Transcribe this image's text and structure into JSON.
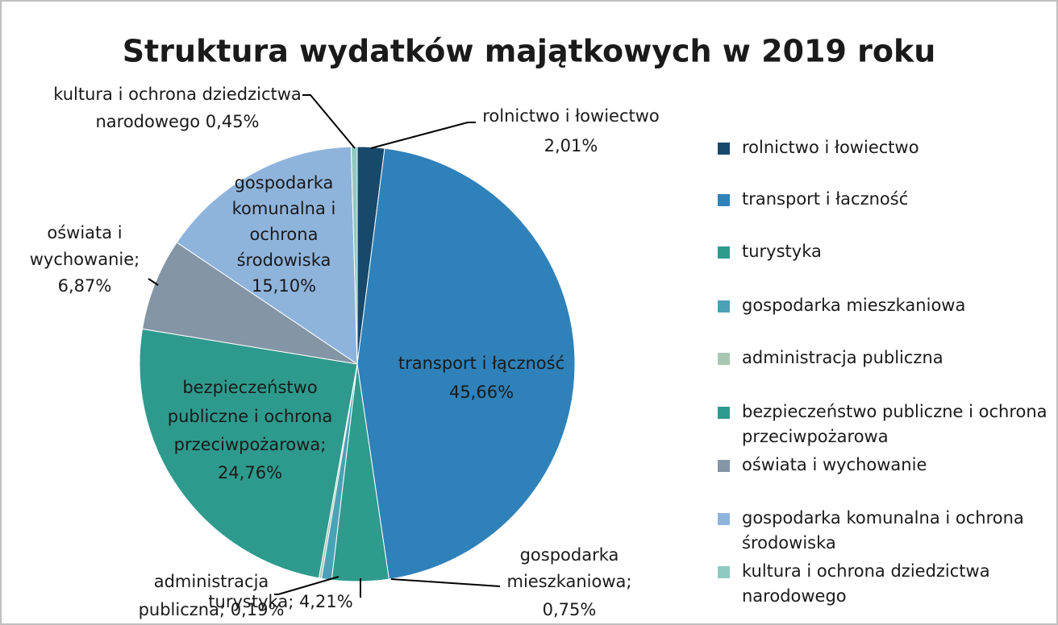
{
  "chart_data": {
    "type": "pie",
    "title": "Struktura wydatków majątkowych w 2019 roku",
    "categories": [
      "rolnictwo i łowiectwo",
      "transport i łaczność",
      "turystyka",
      "gospodarka mieszkaniowa",
      "administracja publiczna",
      "bezpieczeństwo publiczne i ochrona przeciwpożarowa",
      "oświata i wychowanie",
      "gospodarka komunalna i ochrona środowiska",
      "kultura i ochrona dziedzictwa narodowego"
    ],
    "values": [
      2.01,
      45.66,
      4.21,
      0.75,
      0.19,
      24.76,
      6.87,
      15.1,
      0.45
    ],
    "value_labels": [
      [
        "rolnictwo i łowiectwo",
        "2,01%"
      ],
      [
        "transport i łączność",
        "45,66%"
      ],
      [
        "turystyka; 4,21%"
      ],
      [
        "gospodarka",
        "mieszkaniowa;",
        "0,75%"
      ],
      [
        "administracja",
        "publiczna; 0,19%"
      ],
      [
        "bezpieczeństwo",
        "publiczne i ochrona",
        "przeciwpożarowa;",
        "24,76%"
      ],
      [
        "oświata i",
        "wychowanie;",
        "6,87%"
      ],
      [
        "gospodarka",
        "komunalna i",
        "ochrona",
        "środowiska",
        "15,10%"
      ],
      [
        "kultura i ochrona dziedzictwa",
        "narodowego 0,45%"
      ]
    ],
    "colors": [
      "#17496b",
      "#2f81b9",
      "#2f9b8c",
      "#4aa2b6",
      "#a9c6b2",
      "#2e9a8d",
      "#8495a5",
      "#8fb4dc",
      "#8ecac1"
    ],
    "legend": "right"
  }
}
